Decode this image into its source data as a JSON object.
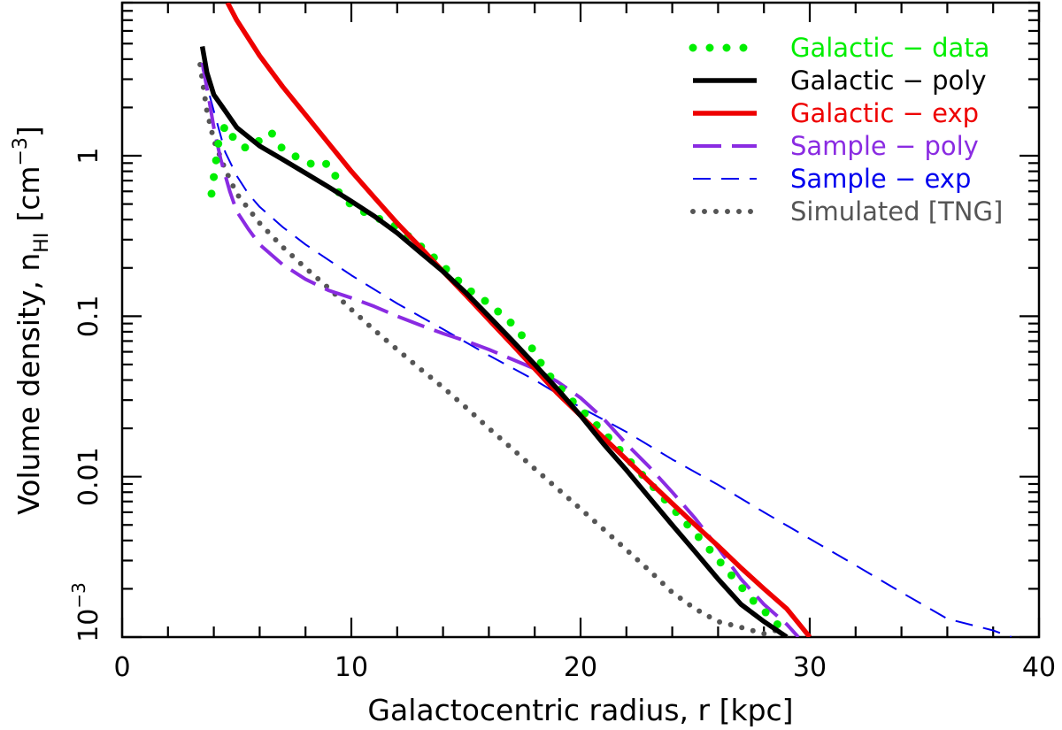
{
  "chart_data": {
    "type": "line",
    "xlabel": "Galactocentric radius, r  [kpc]",
    "ylabel": {
      "prefix": "Volume density, n",
      "subscript": "HI",
      "unit_open": "[cm",
      "superscript": "−3",
      "unit_close": "]"
    },
    "xlim": [
      0,
      40
    ],
    "ylim": [
      0.001,
      9
    ],
    "yscale": "log",
    "grid": false,
    "legend_position": "top-right",
    "x_ticks": [
      {
        "value": 0,
        "label": "0"
      },
      {
        "value": 10,
        "label": "10"
      },
      {
        "value": 20,
        "label": "20"
      },
      {
        "value": 30,
        "label": "30"
      },
      {
        "value": 40,
        "label": "40"
      }
    ],
    "y_ticks": [
      {
        "value": 0.01,
        "label": "0.01"
      },
      {
        "value": 0.1,
        "label": "0.1"
      },
      {
        "value": 1,
        "label": "1"
      }
    ],
    "y_tick_power": {
      "value": 0.001,
      "base": "10",
      "exponent": "−3"
    },
    "series": [
      {
        "name": "Galactic − data",
        "color": "#00ee00",
        "style": "dotted-thick",
        "x": [
          3.9,
          4.2,
          4.5,
          4.7,
          5.0,
          5.5,
          6.0,
          6.5,
          7.0,
          7.5,
          8.0,
          8.5,
          9.0,
          9.3,
          9.5,
          10.5,
          12.0,
          13.5,
          15.0,
          16.0,
          17.0,
          17.8,
          18.5,
          19.5,
          21.0,
          22.5,
          24.0,
          25.5,
          26.5,
          27.5,
          28.5,
          29.0
        ],
        "y": [
          0.58,
          1.2,
          1.55,
          1.4,
          1.2,
          1.1,
          1.25,
          1.4,
          1.1,
          1.0,
          0.93,
          0.85,
          0.9,
          0.75,
          0.55,
          0.45,
          0.36,
          0.24,
          0.15,
          0.12,
          0.09,
          0.066,
          0.045,
          0.031,
          0.019,
          0.011,
          0.0064,
          0.0037,
          0.0025,
          0.0017,
          0.00125,
          0.001
        ]
      },
      {
        "name": "Galactic − poly",
        "color": "#000000",
        "style": "solid-thick",
        "x": [
          3.5,
          3.7,
          4.0,
          4.5,
          5.0,
          6.0,
          7.0,
          8.0,
          9.0,
          10.0,
          11.0,
          12.0,
          13.0,
          14.0,
          15.0,
          16.0,
          17.0,
          18.0,
          19.0,
          20.0,
          21.0,
          22.0,
          23.0,
          24.0,
          25.0,
          26.0,
          27.0,
          28.0,
          29.0
        ],
        "y": [
          4.8,
          3.3,
          2.4,
          1.9,
          1.5,
          1.15,
          0.95,
          0.78,
          0.64,
          0.52,
          0.42,
          0.33,
          0.25,
          0.19,
          0.14,
          0.1,
          0.071,
          0.05,
          0.035,
          0.024,
          0.016,
          0.011,
          0.0074,
          0.005,
          0.0034,
          0.0023,
          0.0016,
          0.00125,
          0.001
        ]
      },
      {
        "name": "Galactic − exp",
        "color": "#ee0000",
        "style": "solid-thick",
        "x": [
          4.6,
          5.0,
          6.0,
          7.0,
          8.0,
          9.0,
          10.0,
          11.0,
          12.0,
          13.0,
          14.0,
          15.0,
          16.0,
          17.0,
          18.0,
          19.0,
          20.0,
          21.0,
          22.0,
          23.0,
          24.0,
          25.0,
          26.0,
          27.0,
          28.0,
          29.0,
          30.0
        ],
        "y": [
          9.0,
          7.0,
          4.2,
          2.7,
          1.8,
          1.2,
          0.8,
          0.55,
          0.38,
          0.27,
          0.19,
          0.135,
          0.095,
          0.067,
          0.047,
          0.033,
          0.024,
          0.0175,
          0.0128,
          0.0093,
          0.0068,
          0.005,
          0.0037,
          0.0027,
          0.002,
          0.0015,
          0.001
        ]
      },
      {
        "name": "Sample − poly",
        "color": "#8a2be2",
        "style": "long-dash",
        "x": [
          3.5,
          3.8,
          4.0,
          4.3,
          4.7,
          5.0,
          5.5,
          6.0,
          7.0,
          8.0,
          9.0,
          10.0,
          11.0,
          12.0,
          13.0,
          14.0,
          15.0,
          16.0,
          17.0,
          18.0,
          19.0,
          20.0,
          21.0,
          22.0,
          23.0,
          24.0,
          25.0,
          26.0,
          27.0,
          28.0,
          29.0,
          29.5
        ],
        "y": [
          3.8,
          2.2,
          1.5,
          0.95,
          0.6,
          0.45,
          0.35,
          0.28,
          0.21,
          0.17,
          0.145,
          0.13,
          0.115,
          0.1,
          0.088,
          0.078,
          0.07,
          0.062,
          0.054,
          0.047,
          0.039,
          0.031,
          0.023,
          0.016,
          0.0115,
          0.008,
          0.0055,
          0.0036,
          0.0023,
          0.0016,
          0.0012,
          0.001
        ]
      },
      {
        "name": "Sample − exp",
        "color": "#0000ee",
        "style": "thin-dash",
        "x": [
          3.5,
          4.0,
          4.5,
          5.0,
          5.5,
          6.0,
          7.0,
          8.0,
          10.0,
          12.0,
          14.0,
          16.0,
          18.0,
          20.0,
          22.0,
          24.0,
          26.0,
          28.0,
          30.0,
          32.0,
          34.0,
          36.0,
          38.0,
          38.8
        ],
        "y": [
          3.5,
          1.9,
          1.05,
          0.75,
          0.58,
          0.48,
          0.36,
          0.28,
          0.18,
          0.12,
          0.083,
          0.057,
          0.04,
          0.027,
          0.019,
          0.0128,
          0.0089,
          0.006,
          0.0041,
          0.0028,
          0.0019,
          0.0013,
          0.0011,
          0.001
        ]
      },
      {
        "name": "Simulated [TNG]",
        "color": "#555555",
        "style": "dotted",
        "x": [
          3.4,
          3.7,
          4.0,
          4.5,
          5.0,
          6.0,
          7.0,
          8.0,
          9.0,
          10.0,
          11.0,
          12.0,
          13.0,
          14.0,
          15.0,
          16.0,
          17.0,
          18.0,
          19.0,
          20.0,
          21.0,
          22.0,
          23.0,
          24.0,
          25.0,
          26.0,
          27.0,
          28.0,
          28.5,
          29.0
        ],
        "y": [
          3.7,
          1.9,
          1.25,
          0.82,
          0.58,
          0.38,
          0.27,
          0.2,
          0.15,
          0.11,
          0.082,
          0.062,
          0.047,
          0.036,
          0.027,
          0.02,
          0.015,
          0.0112,
          0.0084,
          0.0063,
          0.0047,
          0.0035,
          0.0026,
          0.0019,
          0.0015,
          0.00125,
          0.00115,
          0.00105,
          0.0011,
          0.001
        ]
      }
    ]
  }
}
